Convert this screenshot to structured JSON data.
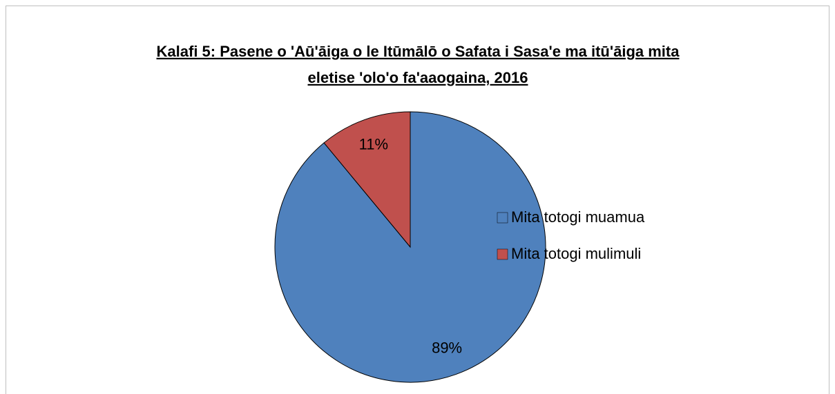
{
  "chart_data": {
    "type": "pie",
    "title": [
      "Kalafi 5: Pasene o 'Aū'āiga o le Itūmālō o Safata i Sasa'e ma itū'āiga mita",
      "eletise 'olo'o fa'aaogaina, 2016"
    ],
    "categories": [
      "Mita totogi muamua",
      "Mita totogi mulimuli"
    ],
    "values": [
      89,
      11
    ],
    "value_labels": [
      "89%",
      "11%"
    ],
    "colors": [
      "#4f81bd",
      "#c0504d"
    ],
    "legend": "right"
  }
}
